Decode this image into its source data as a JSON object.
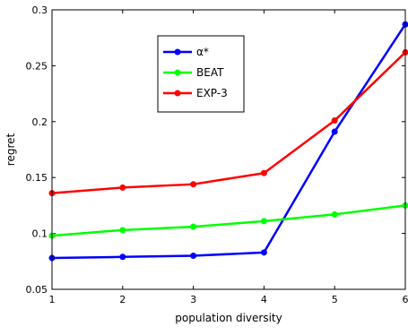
{
  "chart_data": {
    "type": "line",
    "xlabel": "population diversity",
    "ylabel": "regret",
    "xlim": [
      1,
      6
    ],
    "ylim": [
      0.05,
      0.3
    ],
    "x": [
      1,
      2,
      3,
      4,
      5,
      6
    ],
    "xticks": [
      "1",
      "2",
      "3",
      "4",
      "5",
      "6"
    ],
    "yticks": [
      {
        "value": 0.05,
        "label": "0.05"
      },
      {
        "value": 0.1,
        "label": "0.1"
      },
      {
        "value": 0.15,
        "label": "0.15"
      },
      {
        "value": 0.2,
        "label": "0.2"
      },
      {
        "value": 0.25,
        "label": "0.25"
      },
      {
        "value": 0.3,
        "label": "0.3"
      }
    ],
    "grid": false,
    "legend_position": "top-center",
    "series": [
      {
        "name": "α*",
        "color": "#0000ff",
        "values": [
          0.078,
          0.079,
          0.08,
          0.083,
          0.191,
          0.287
        ]
      },
      {
        "name": "BEAT",
        "color": "#00ff00",
        "values": [
          0.098,
          0.103,
          0.106,
          0.111,
          0.117,
          0.125
        ]
      },
      {
        "name": "EXP-3",
        "color": "#ff0000",
        "values": [
          0.136,
          0.141,
          0.144,
          0.154,
          0.201,
          0.262
        ]
      }
    ]
  }
}
